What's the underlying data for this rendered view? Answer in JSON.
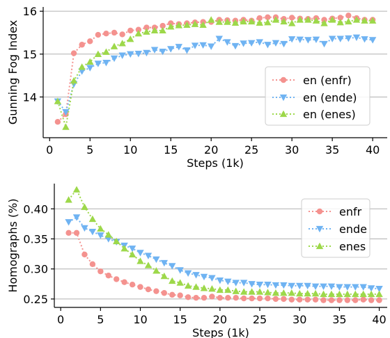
{
  "colors": {
    "enfr": "#f4928f",
    "ende": "#6fb3f2",
    "enes": "#9dd84a"
  },
  "chart_data": [
    {
      "type": "line",
      "ylabel": "Gunning Fog Index",
      "xlabel": "Steps (1k)",
      "xlim": [
        -0.8,
        41.8
      ],
      "ylim": [
        13.05,
        16.1
      ],
      "xticks": [
        0,
        5,
        10,
        15,
        20,
        25,
        30,
        35,
        40
      ],
      "yticks": [
        14,
        15,
        16
      ],
      "grid": "horizontal",
      "legend_position": "center-right",
      "x": [
        1,
        2,
        3,
        4,
        5,
        6,
        7,
        8,
        9,
        10,
        11,
        12,
        13,
        14,
        15,
        16,
        17,
        18,
        19,
        20,
        21,
        22,
        23,
        24,
        25,
        26,
        27,
        28,
        29,
        30,
        31,
        32,
        33,
        34,
        35,
        36,
        37,
        38,
        39,
        40
      ],
      "series": [
        {
          "name": "en (enfr)",
          "marker": "circle",
          "color_key": "enfr",
          "values": [
            13.42,
            13.6,
            15.02,
            15.22,
            15.3,
            15.45,
            15.48,
            15.5,
            15.46,
            15.55,
            15.57,
            15.62,
            15.62,
            15.66,
            15.72,
            15.7,
            15.72,
            15.74,
            15.75,
            15.75,
            15.8,
            15.79,
            15.78,
            15.8,
            15.78,
            15.84,
            15.86,
            15.86,
            15.82,
            15.85,
            15.83,
            15.82,
            15.84,
            15.8,
            15.83,
            15.85,
            15.9,
            15.84,
            15.8,
            15.8
          ]
        },
        {
          "name": "en (ende)",
          "marker": "triangle-down",
          "color_key": "ende",
          "values": [
            13.9,
            13.65,
            14.3,
            14.6,
            14.68,
            14.78,
            14.8,
            14.9,
            14.97,
            15.0,
            15.01,
            15.03,
            15.1,
            15.06,
            15.12,
            15.17,
            15.09,
            15.2,
            15.21,
            15.18,
            15.36,
            15.28,
            15.19,
            15.25,
            15.26,
            15.28,
            15.22,
            15.26,
            15.24,
            15.35,
            15.34,
            15.33,
            15.34,
            15.24,
            15.36,
            15.36,
            15.37,
            15.39,
            15.35,
            15.33
          ]
        },
        {
          "name": "en (enes)",
          "marker": "triangle-up",
          "color_key": "enes",
          "values": [
            13.9,
            13.3,
            14.38,
            14.7,
            14.82,
            15.0,
            15.05,
            15.18,
            15.25,
            15.35,
            15.48,
            15.52,
            15.55,
            15.55,
            15.64,
            15.67,
            15.68,
            15.7,
            15.68,
            15.8,
            15.75,
            15.75,
            15.73,
            15.76,
            15.76,
            15.73,
            15.74,
            15.8,
            15.76,
            15.72,
            15.8,
            15.8,
            15.78,
            15.72,
            15.8,
            15.74,
            15.76,
            15.8,
            15.78,
            15.78
          ]
        }
      ]
    },
    {
      "type": "line",
      "ylabel": "Homographs (%)",
      "xlabel": "Steps (1k)",
      "xlim": [
        -0.8,
        41.0
      ],
      "ylim": [
        0.236,
        0.442
      ],
      "xticks": [
        0,
        5,
        10,
        15,
        20,
        25,
        30,
        35,
        40
      ],
      "yticks": [
        0.25,
        0.3,
        0.35,
        0.4
      ],
      "ytick_labels": [
        "0.25",
        "0.30",
        "0.35",
        "0.40"
      ],
      "grid": "horizontal",
      "legend_position": "top-right",
      "x": [
        1,
        2,
        3,
        4,
        5,
        6,
        7,
        8,
        9,
        10,
        11,
        12,
        13,
        14,
        15,
        16,
        17,
        18,
        19,
        20,
        21,
        22,
        23,
        24,
        25,
        26,
        27,
        28,
        29,
        30,
        31,
        32,
        33,
        34,
        35,
        36,
        37,
        38,
        39,
        40
      ],
      "series": [
        {
          "name": "enfr",
          "marker": "circle",
          "color_key": "enfr",
          "values": [
            0.36,
            0.36,
            0.324,
            0.308,
            0.296,
            0.289,
            0.283,
            0.278,
            0.274,
            0.27,
            0.266,
            0.263,
            0.26,
            0.257,
            0.256,
            0.253,
            0.252,
            0.252,
            0.254,
            0.252,
            0.252,
            0.252,
            0.251,
            0.251,
            0.251,
            0.251,
            0.25,
            0.25,
            0.249,
            0.249,
            0.249,
            0.249,
            0.248,
            0.248,
            0.248,
            0.248,
            0.248,
            0.249,
            0.248,
            0.248
          ]
        },
        {
          "name": "ende",
          "marker": "triangle-down",
          "color_key": "ende",
          "values": [
            0.378,
            0.386,
            0.368,
            0.362,
            0.356,
            0.35,
            0.345,
            0.339,
            0.334,
            0.327,
            0.322,
            0.316,
            0.31,
            0.305,
            0.298,
            0.293,
            0.29,
            0.287,
            0.285,
            0.281,
            0.279,
            0.277,
            0.277,
            0.275,
            0.274,
            0.274,
            0.273,
            0.273,
            0.272,
            0.272,
            0.272,
            0.271,
            0.271,
            0.271,
            0.27,
            0.27,
            0.27,
            0.27,
            0.268,
            0.267
          ]
        },
        {
          "name": "enes",
          "marker": "triangle-up",
          "color_key": "enes",
          "values": [
            0.415,
            0.432,
            0.403,
            0.383,
            0.367,
            0.357,
            0.346,
            0.334,
            0.324,
            0.313,
            0.306,
            0.297,
            0.288,
            0.28,
            0.277,
            0.272,
            0.27,
            0.268,
            0.267,
            0.265,
            0.265,
            0.263,
            0.262,
            0.262,
            0.262,
            0.261,
            0.26,
            0.26,
            0.26,
            0.259,
            0.259,
            0.259,
            0.258,
            0.258,
            0.258,
            0.258,
            0.258,
            0.258,
            0.258,
            0.258
          ]
        }
      ]
    }
  ]
}
